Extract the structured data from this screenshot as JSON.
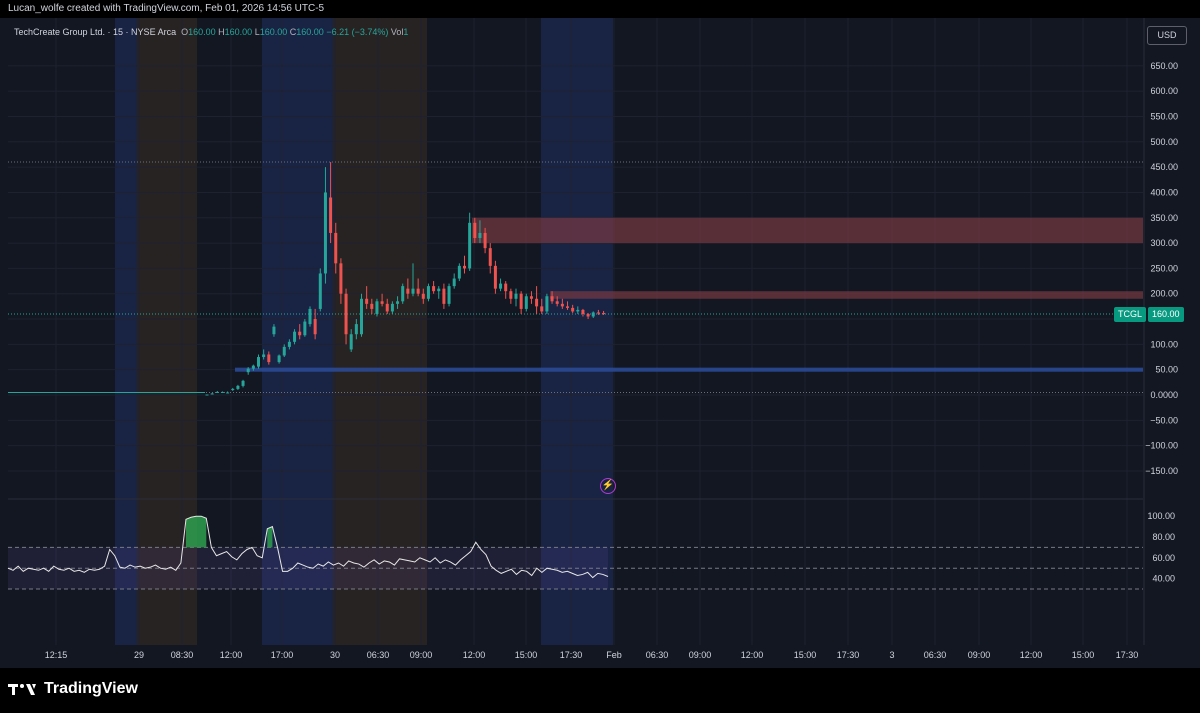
{
  "header": {
    "attribution": "Lucan_wolfe created with TradingView.com, Feb 01, 2026 14:56 UTC-5"
  },
  "legend": {
    "symbol": "TechCreate Group Ltd. · 15 · NYSE Arca",
    "open_label": "O",
    "open": "160.00",
    "high_label": "H",
    "high": "160.00",
    "low_label": "L",
    "low": "160.00",
    "close_label": "C",
    "close": "160.00",
    "change": "−6.21 (−3.74%)",
    "vol_label": "Vol",
    "vol": "1"
  },
  "currency": "USD",
  "price_tag": {
    "symbol": "TCGL",
    "price": "160.00"
  },
  "footer": {
    "brand": "TradingView"
  },
  "colors": {
    "up": "#26a69a",
    "down": "#ef5350",
    "background": "#131722",
    "session_blue": "#1f2f63",
    "session_orange": "#3a2e24",
    "zone_red": "#7e3a44",
    "zone_blue": "#2b4c9a",
    "rsi_band": "#7e57c2"
  },
  "chart_data": [
    {
      "type": "candlestick",
      "y_ticks": [
        "650.00",
        "600.00",
        "550.00",
        "500.00",
        "450.00",
        "400.00",
        "350.00",
        "300.00",
        "250.00",
        "200.00",
        "150.00",
        "100.00",
        "50.00",
        "0.0000",
        "−50.00",
        "−100.00",
        "−150.00"
      ],
      "ylim": [
        -180,
        690
      ],
      "x_ticks": [
        "12:15",
        "29",
        "08:30",
        "12:00",
        "17:00",
        "30",
        "06:30",
        "09:00",
        "12:00",
        "15:00",
        "17:30",
        "Feb",
        "06:30",
        "09:00",
        "12:00",
        "15:00",
        "17:30",
        "3",
        "06:30",
        "09:00",
        "12:00",
        "15:00",
        "17:30"
      ],
      "last_price": 160,
      "horizontal_lines": [
        460,
        5
      ],
      "zones": [
        {
          "color": "red",
          "from": 300,
          "to": 350
        },
        {
          "color": "red",
          "from": 190,
          "to": 205
        },
        {
          "color": "blue",
          "from": 46,
          "to": 54
        }
      ],
      "candles": [
        [
          0,
          0,
          1,
          0,
          1
        ],
        [
          1,
          3,
          4,
          2,
          3
        ],
        [
          2,
          5,
          8,
          4,
          6
        ],
        [
          3,
          5,
          7,
          4,
          6
        ],
        [
          4,
          5,
          7,
          4,
          5
        ],
        [
          5,
          10,
          14,
          8,
          12
        ],
        [
          6,
          12,
          20,
          10,
          18
        ],
        [
          7,
          18,
          30,
          15,
          28
        ],
        [
          8,
          45,
          55,
          40,
          52
        ],
        [
          9,
          52,
          60,
          48,
          58
        ],
        [
          10,
          56,
          80,
          52,
          75
        ],
        [
          11,
          75,
          90,
          70,
          80
        ],
        [
          12,
          80,
          86,
          60,
          65
        ],
        [
          13,
          120,
          140,
          115,
          135
        ],
        [
          14,
          65,
          80,
          62,
          78
        ],
        [
          15,
          78,
          100,
          75,
          95
        ],
        [
          16,
          95,
          110,
          90,
          105
        ],
        [
          17,
          105,
          130,
          100,
          125
        ],
        [
          18,
          125,
          140,
          110,
          118
        ],
        [
          19,
          118,
          150,
          115,
          145
        ],
        [
          20,
          140,
          175,
          135,
          170
        ],
        [
          21,
          150,
          170,
          110,
          120
        ],
        [
          22,
          170,
          250,
          165,
          240
        ],
        [
          23,
          240,
          450,
          220,
          400
        ],
        [
          24,
          390,
          460,
          300,
          320
        ],
        [
          25,
          320,
          340,
          240,
          260
        ],
        [
          26,
          260,
          270,
          180,
          200
        ],
        [
          27,
          200,
          210,
          100,
          120
        ],
        [
          28,
          90,
          130,
          85,
          120
        ],
        [
          29,
          120,
          150,
          110,
          140
        ],
        [
          30,
          120,
          200,
          115,
          190
        ],
        [
          31,
          190,
          215,
          170,
          180
        ],
        [
          32,
          180,
          190,
          160,
          170
        ],
        [
          33,
          160,
          190,
          155,
          185
        ],
        [
          34,
          185,
          200,
          175,
          180
        ],
        [
          35,
          180,
          190,
          160,
          165
        ],
        [
          36,
          165,
          185,
          160,
          180
        ],
        [
          37,
          180,
          195,
          170,
          185
        ],
        [
          38,
          185,
          220,
          180,
          215
        ],
        [
          39,
          210,
          230,
          190,
          200
        ],
        [
          40,
          200,
          260,
          195,
          210
        ],
        [
          41,
          210,
          230,
          195,
          200
        ],
        [
          42,
          200,
          210,
          180,
          190
        ],
        [
          43,
          190,
          220,
          185,
          215
        ],
        [
          44,
          215,
          225,
          200,
          205
        ],
        [
          45,
          205,
          215,
          190,
          210
        ],
        [
          46,
          210,
          220,
          170,
          180
        ],
        [
          47,
          180,
          220,
          175,
          215
        ],
        [
          48,
          215,
          240,
          210,
          230
        ],
        [
          49,
          230,
          260,
          225,
          255
        ],
        [
          50,
          255,
          275,
          240,
          250
        ],
        [
          51,
          250,
          360,
          245,
          340
        ],
        [
          52,
          340,
          350,
          300,
          310
        ],
        [
          53,
          310,
          345,
          300,
          320
        ],
        [
          54,
          320,
          330,
          280,
          290
        ],
        [
          55,
          290,
          300,
          240,
          255
        ],
        [
          56,
          255,
          265,
          200,
          210
        ],
        [
          57,
          210,
          230,
          205,
          220
        ],
        [
          58,
          220,
          225,
          190,
          205
        ],
        [
          59,
          205,
          210,
          180,
          190
        ],
        [
          60,
          190,
          210,
          175,
          200
        ],
        [
          61,
          200,
          205,
          160,
          170
        ],
        [
          62,
          170,
          200,
          165,
          195
        ],
        [
          63,
          195,
          205,
          180,
          190
        ],
        [
          64,
          190,
          215,
          160,
          175
        ],
        [
          65,
          175,
          190,
          160,
          165
        ],
        [
          66,
          165,
          200,
          160,
          195
        ],
        [
          67,
          195,
          205,
          180,
          185
        ],
        [
          68,
          185,
          195,
          175,
          180
        ],
        [
          69,
          180,
          190,
          170,
          175
        ],
        [
          70,
          175,
          185,
          168,
          172
        ],
        [
          71,
          172,
          178,
          162,
          165
        ],
        [
          72,
          165,
          175,
          160,
          168
        ],
        [
          73,
          168,
          170,
          155,
          160
        ],
        [
          74,
          160,
          162,
          150,
          155
        ],
        [
          75,
          155,
          165,
          152,
          163
        ],
        [
          76,
          163,
          168,
          158,
          162
        ],
        [
          77,
          162,
          166,
          158,
          160
        ]
      ]
    },
    {
      "type": "line",
      "name": "RSI",
      "y_ticks": [
        "100.00",
        "80.00",
        "60.00",
        "40.00"
      ],
      "ylim": [
        25,
        108
      ],
      "bands": [
        70,
        50,
        30
      ],
      "values": [
        50,
        48,
        52,
        47,
        50,
        49,
        48,
        50,
        47,
        52,
        49,
        48,
        50,
        47,
        48,
        46,
        49,
        48,
        49,
        52,
        68,
        62,
        51,
        50,
        53,
        51,
        52,
        50,
        51,
        53,
        50,
        49,
        51,
        48,
        55,
        97,
        99,
        100,
        100,
        98,
        70,
        62,
        64,
        66,
        61,
        58,
        64,
        68,
        70,
        62,
        60,
        88,
        90,
        70,
        47,
        47,
        50,
        55,
        53,
        51,
        50,
        54,
        52,
        56,
        53,
        55,
        52,
        57,
        55,
        54,
        51,
        55,
        58,
        54,
        57,
        56,
        53,
        59,
        58,
        57,
        56,
        60,
        58,
        56,
        60,
        55,
        58,
        56,
        53,
        58,
        62,
        66,
        75,
        68,
        63,
        52,
        48,
        45,
        47,
        49,
        44,
        48,
        47,
        43,
        50,
        46,
        50,
        49,
        48,
        46,
        47,
        45,
        43,
        44,
        46,
        41,
        45,
        44,
        42
      ]
    }
  ]
}
